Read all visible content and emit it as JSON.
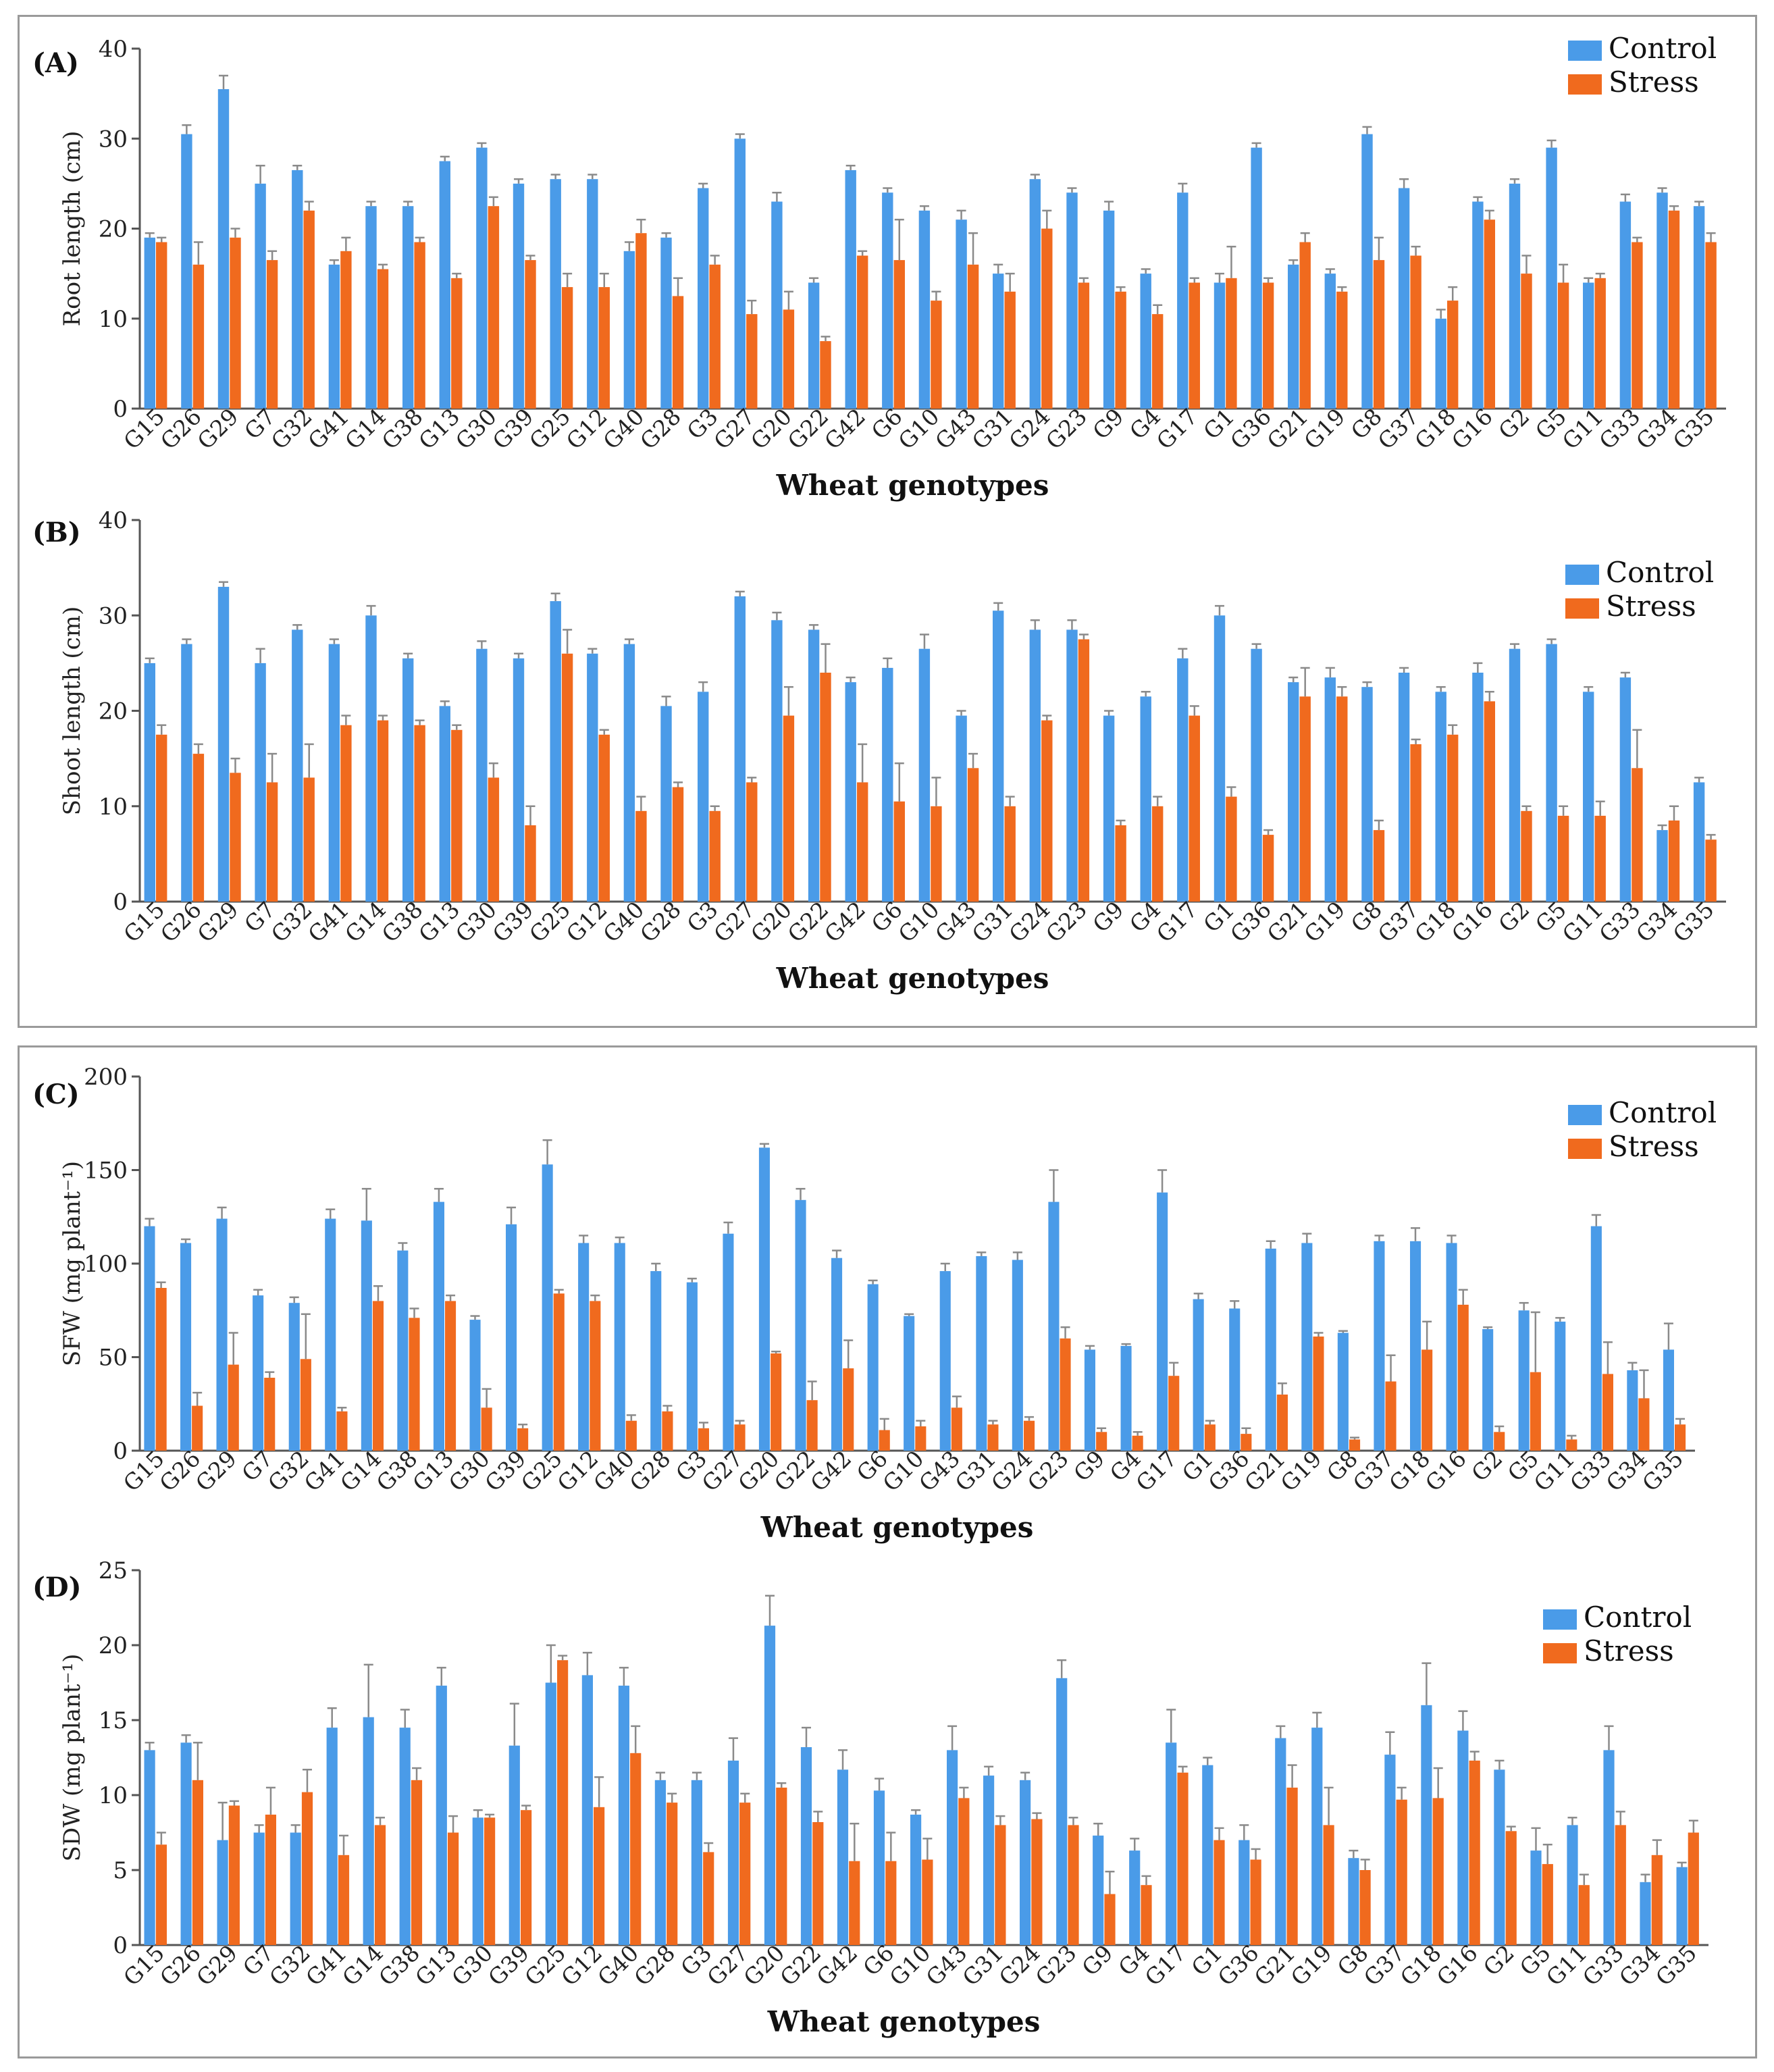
{
  "colors": {
    "control": "#4A9BE8",
    "stress": "#F06A1E",
    "axis": "#555555",
    "error": "#8a8a8a"
  },
  "chart_data": [
    {
      "type": "bar",
      "panel_label": "(A)",
      "ylabel": "Root length (cm)",
      "xlabel": "Wheat genotypes",
      "ylim": [
        0,
        40
      ],
      "yticks": [
        "0",
        "10",
        "20",
        "30",
        "40"
      ],
      "legend": [
        "Control",
        "Stress"
      ],
      "legend_position": "top-right",
      "categories": [
        "G15",
        "G26",
        "G29",
        "G7",
        "G32",
        "G41",
        "G14",
        "G38",
        "G13",
        "G30",
        "G39",
        "G25",
        "G12",
        "G40",
        "G28",
        "G3",
        "G27",
        "G20",
        "G22",
        "G42",
        "G6",
        "G10",
        "G43",
        "G31",
        "G24",
        "G23",
        "G9",
        "G4",
        "G17",
        "G1",
        "G36",
        "G21",
        "G19",
        "G8",
        "G37",
        "G18",
        "G16",
        "G2",
        "G5",
        "G11",
        "G33",
        "G34",
        "G35"
      ],
      "series": [
        {
          "name": "Control",
          "values": [
            19,
            30.5,
            35.5,
            25,
            26.5,
            16,
            22.5,
            22.5,
            27.5,
            29,
            25,
            25.5,
            25.5,
            17.5,
            19,
            24.5,
            30,
            23,
            14,
            26.5,
            24,
            22,
            21,
            15,
            25.5,
            24,
            22,
            15,
            24,
            14,
            29,
            16,
            15,
            30.5,
            24.5,
            10,
            23,
            25,
            29,
            14,
            23,
            24,
            22.5
          ],
          "errors": [
            0.5,
            1,
            1.5,
            2,
            0.5,
            0.5,
            0.5,
            0.5,
            0.5,
            0.5,
            0.5,
            0.5,
            0.5,
            1,
            0.5,
            0.5,
            0.5,
            1,
            0.5,
            0.5,
            0.5,
            0.5,
            1,
            1,
            0.5,
            0.5,
            1,
            0.5,
            1,
            1,
            0.5,
            0.5,
            0.5,
            0.8,
            1,
            1,
            0.5,
            0.5,
            0.8,
            0.5,
            0.8,
            0.5,
            0.5
          ]
        },
        {
          "name": "Stress",
          "values": [
            18.5,
            16,
            19,
            16.5,
            22,
            17.5,
            15.5,
            18.5,
            14.5,
            22.5,
            16.5,
            13.5,
            13.5,
            19.5,
            12.5,
            16,
            10.5,
            11,
            7.5,
            17,
            16.5,
            12,
            16,
            13,
            20,
            14,
            13,
            10.5,
            14,
            14.5,
            14,
            18.5,
            13,
            16.5,
            17,
            12,
            21,
            15,
            14,
            14.5,
            18.5,
            22,
            18.5
          ],
          "errors": [
            0.5,
            2.5,
            1,
            1,
            1,
            1.5,
            0.5,
            0.5,
            0.5,
            1,
            0.5,
            1.5,
            1.5,
            1.5,
            2,
            1,
            1.5,
            2,
            0.5,
            0.5,
            4.5,
            1,
            3.5,
            2,
            2,
            0.5,
            0.5,
            1,
            0.5,
            3.5,
            0.5,
            1,
            0.5,
            2.5,
            1,
            1.5,
            1,
            2,
            2,
            0.5,
            0.5,
            0.5,
            1
          ]
        }
      ]
    },
    {
      "type": "bar",
      "panel_label": "(B)",
      "ylabel": "Shoot length (cm)",
      "xlabel": "Wheat genotypes",
      "ylim": [
        0,
        40
      ],
      "yticks": [
        "0",
        "10",
        "20",
        "30",
        "40"
      ],
      "legend": [
        "Control",
        "Stress"
      ],
      "legend_position": "top-right",
      "categories": [
        "G15",
        "G26",
        "G29",
        "G7",
        "G32",
        "G41",
        "G14",
        "G38",
        "G13",
        "G30",
        "G39",
        "G25",
        "G12",
        "G40",
        "G28",
        "G3",
        "G27",
        "G20",
        "G22",
        "G42",
        "G6",
        "G10",
        "G43",
        "G31",
        "G24",
        "G23",
        "G9",
        "G4",
        "G17",
        "G1",
        "G36",
        "G21",
        "G19",
        "G8",
        "G37",
        "G18",
        "G16",
        "G2",
        "G5",
        "G11",
        "G33",
        "G34",
        "G35"
      ],
      "series": [
        {
          "name": "Control",
          "values": [
            25,
            27,
            33,
            25,
            28.5,
            27,
            30,
            25.5,
            20.5,
            26.5,
            25.5,
            31.5,
            26,
            27,
            20.5,
            22,
            32,
            29.5,
            28.5,
            23,
            24.5,
            26.5,
            19.5,
            30.5,
            28.5,
            28.5,
            19.5,
            21.5,
            25.5,
            30,
            26.5,
            23,
            23.5,
            22.5,
            24,
            22,
            24,
            26.5,
            27,
            22,
            23.5,
            7.5,
            12.5
          ],
          "errors": [
            0.5,
            0.5,
            0.5,
            1.5,
            0.5,
            0.5,
            1,
            0.5,
            0.5,
            0.8,
            0.5,
            0.8,
            0.5,
            0.5,
            1,
            1,
            0.5,
            0.8,
            0.5,
            0.5,
            1,
            1.5,
            0.5,
            0.8,
            1,
            1,
            0.5,
            0.5,
            1,
            1,
            0.5,
            0.5,
            1,
            0.5,
            0.5,
            0.5,
            1,
            0.5,
            0.5,
            0.5,
            0.5,
            0.5,
            0.5
          ]
        },
        {
          "name": "Stress",
          "values": [
            17.5,
            15.5,
            13.5,
            12.5,
            13,
            18.5,
            19,
            18.5,
            18,
            13,
            8,
            26,
            17.5,
            9.5,
            12,
            9.5,
            12.5,
            19.5,
            24,
            12.5,
            10.5,
            10,
            14,
            10,
            19,
            27.5,
            8,
            10,
            19.5,
            11,
            7,
            21.5,
            21.5,
            7.5,
            16.5,
            17.5,
            21,
            9.5,
            9,
            9,
            14,
            8.5,
            6.5
          ],
          "errors": [
            1,
            1,
            1.5,
            3,
            3.5,
            1,
            0.5,
            0.5,
            0.5,
            1.5,
            2,
            2.5,
            0.5,
            1.5,
            0.5,
            0.5,
            0.5,
            3,
            3,
            4,
            4,
            3,
            1.5,
            1,
            0.5,
            0.5,
            0.5,
            1,
            1,
            1,
            0.5,
            3,
            1,
            1,
            0.5,
            1,
            1,
            0.5,
            1,
            1.5,
            4,
            1.5,
            0.5
          ]
        }
      ]
    },
    {
      "type": "bar",
      "panel_label": "(C)",
      "ylabel": "SFW (mg plant⁻¹)",
      "xlabel": "Wheat genotypes",
      "ylim": [
        0,
        200
      ],
      "yticks": [
        "0",
        "50",
        "100",
        "150",
        "200"
      ],
      "legend": [
        "Control",
        "Stress"
      ],
      "legend_position": "top-right",
      "categories": [
        "G15",
        "G26",
        "G29",
        "G7",
        "G32",
        "G41",
        "G14",
        "G38",
        "G13",
        "G30",
        "G39",
        "G25",
        "G12",
        "G40",
        "G28",
        "G3",
        "G27",
        "G20",
        "G22",
        "G42",
        "G6",
        "G10",
        "G43",
        "G31",
        "G24",
        "G23",
        "G9",
        "G4",
        "G17",
        "G1",
        "G36",
        "G21",
        "G19",
        "G8",
        "G37",
        "G18",
        "G16",
        "G2",
        "G5",
        "G11",
        "G33",
        "G34",
        "G35"
      ],
      "series": [
        {
          "name": "Control",
          "values": [
            120,
            111,
            124,
            83,
            79,
            124,
            123,
            107,
            133,
            70,
            121,
            153,
            111,
            111,
            96,
            90,
            116,
            162,
            134,
            103,
            89,
            72,
            96,
            104,
            102,
            133,
            54,
            56,
            138,
            81,
            76,
            108,
            111,
            63,
            112,
            112,
            111,
            65,
            75,
            69,
            120,
            43,
            54
          ],
          "errors": [
            4,
            2,
            6,
            3,
            3,
            5,
            17,
            4,
            7,
            2,
            9,
            13,
            4,
            3,
            4,
            2,
            6,
            2,
            6,
            4,
            2,
            1,
            4,
            2,
            4,
            17,
            2,
            1,
            12,
            3,
            4,
            4,
            5,
            1,
            3,
            7,
            4,
            1,
            4,
            2,
            6,
            4,
            14
          ]
        },
        {
          "name": "Stress",
          "values": [
            87,
            24,
            46,
            39,
            49,
            21,
            80,
            71,
            80,
            23,
            12,
            84,
            80,
            16,
            21,
            12,
            14,
            52,
            27,
            44,
            11,
            13,
            23,
            14,
            16,
            60,
            10,
            8,
            40,
            14,
            9,
            30,
            61,
            6,
            37,
            54,
            78,
            10,
            42,
            6,
            41,
            28,
            14
          ],
          "errors": [
            3,
            7,
            17,
            3,
            24,
            2,
            8,
            5,
            3,
            10,
            2,
            2,
            3,
            3,
            3,
            3,
            2,
            1,
            10,
            15,
            6,
            3,
            6,
            2,
            2,
            6,
            2,
            2,
            7,
            2,
            3,
            6,
            2,
            1,
            14,
            15,
            8,
            3,
            32,
            2,
            17,
            15,
            3
          ]
        }
      ]
    },
    {
      "type": "bar",
      "panel_label": "(D)",
      "ylabel": "SDW (mg plant⁻¹)",
      "xlabel": "Wheat genotypes",
      "ylim": [
        0,
        25
      ],
      "yticks": [
        "0",
        "5",
        "10",
        "15",
        "20",
        "25"
      ],
      "legend": [
        "Control",
        "Stress"
      ],
      "legend_position": "top-right",
      "categories": [
        "G15",
        "G26",
        "G29",
        "G7",
        "G32",
        "G41",
        "G14",
        "G38",
        "G13",
        "G30",
        "G39",
        "G25",
        "G12",
        "G40",
        "G28",
        "G3",
        "G27",
        "G20",
        "G22",
        "G42",
        "G6",
        "G10",
        "G43",
        "G31",
        "G24",
        "G23",
        "G9",
        "G4",
        "G17",
        "G1",
        "G36",
        "G21",
        "G19",
        "G8",
        "G37",
        "G18",
        "G16",
        "G2",
        "G5",
        "G11",
        "G33",
        "G34",
        "G35"
      ],
      "series": [
        {
          "name": "Control",
          "values": [
            13,
            13.5,
            7,
            7.5,
            7.5,
            14.5,
            15.2,
            14.5,
            17.3,
            8.5,
            13.3,
            17.5,
            18,
            17.3,
            11,
            11,
            12.3,
            21.3,
            13.2,
            11.7,
            10.3,
            8.7,
            13,
            11.3,
            11,
            17.8,
            7.3,
            6.3,
            13.5,
            12,
            7,
            13.8,
            14.5,
            5.8,
            12.7,
            16,
            14.3,
            11.7,
            6.3,
            8,
            13,
            4.2,
            5.2
          ],
          "errors": [
            0.5,
            0.5,
            2.5,
            0.5,
            0.5,
            1.3,
            3.5,
            1.2,
            1.2,
            0.5,
            2.8,
            2.5,
            1.5,
            1.2,
            0.5,
            0.5,
            1.5,
            2,
            1.3,
            1.3,
            0.8,
            0.3,
            1.6,
            0.6,
            0.5,
            1.2,
            0.8,
            0.8,
            2.2,
            0.5,
            1,
            0.8,
            1,
            0.5,
            1.5,
            2.8,
            1.3,
            0.6,
            1.5,
            0.5,
            1.6,
            0.5,
            0.3
          ]
        },
        {
          "name": "Stress",
          "values": [
            6.7,
            11,
            9.3,
            8.7,
            10.2,
            6,
            8,
            11,
            7.5,
            8.5,
            9,
            19,
            9.2,
            12.8,
            9.5,
            6.2,
            9.5,
            10.5,
            8.2,
            5.6,
            5.6,
            5.7,
            9.8,
            8,
            8.4,
            8,
            3.4,
            4,
            11.5,
            7,
            5.7,
            10.5,
            8,
            5,
            9.7,
            9.8,
            12.3,
            7.6,
            5.4,
            4,
            8,
            6,
            7.5
          ],
          "errors": [
            0.8,
            2.5,
            0.3,
            1.8,
            1.5,
            1.3,
            0.5,
            0.8,
            1.1,
            0.2,
            0.3,
            0.3,
            2,
            1.8,
            0.6,
            0.6,
            0.6,
            0.3,
            0.7,
            2.5,
            1.9,
            1.4,
            0.7,
            0.6,
            0.4,
            0.5,
            1.5,
            0.6,
            0.4,
            0.8,
            0.7,
            1.5,
            2.5,
            0.7,
            0.8,
            2,
            0.6,
            0.3,
            1.3,
            0.7,
            0.9,
            1,
            0.8
          ]
        }
      ]
    }
  ]
}
